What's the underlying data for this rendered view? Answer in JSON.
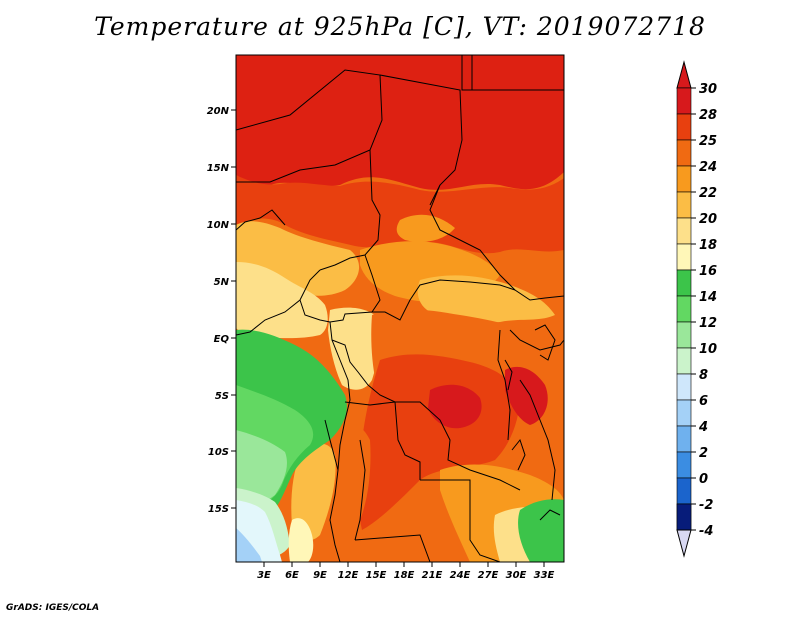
{
  "title": "Temperature at 925hPa [C], VT: 2019072718",
  "footer": "GrADS: IGES/COLA",
  "map": {
    "lat_labels": [
      "20N",
      "15N",
      "10N",
      "5N",
      "EQ",
      "5S",
      "10S",
      "15S"
    ],
    "lon_labels": [
      "3E",
      "6E",
      "9E",
      "12E",
      "15E",
      "18E",
      "21E",
      "24E",
      "27E",
      "30E",
      "33E"
    ]
  },
  "colorbar": {
    "levels": [
      "30",
      "28",
      "25",
      "24",
      "22",
      "20",
      "18",
      "16",
      "14",
      "12",
      "10",
      "8",
      "6",
      "4",
      "2",
      "0",
      "-2",
      "-4"
    ],
    "colors": [
      "#d7191c",
      "#e8400f",
      "#f06a12",
      "#f89a1e",
      "#fbbd45",
      "#fde08a",
      "#fff7b8",
      "#3cc44a",
      "#62d862",
      "#9ae79a",
      "#cbf3cb",
      "#cfe7fb",
      "#a4d1f7",
      "#6fb1ee",
      "#3b8de2",
      "#1b64cc",
      "#0d3fa8",
      "#071c7a"
    ],
    "top_color": "#d7191c",
    "bottom_color": "#d8d8f2"
  }
}
